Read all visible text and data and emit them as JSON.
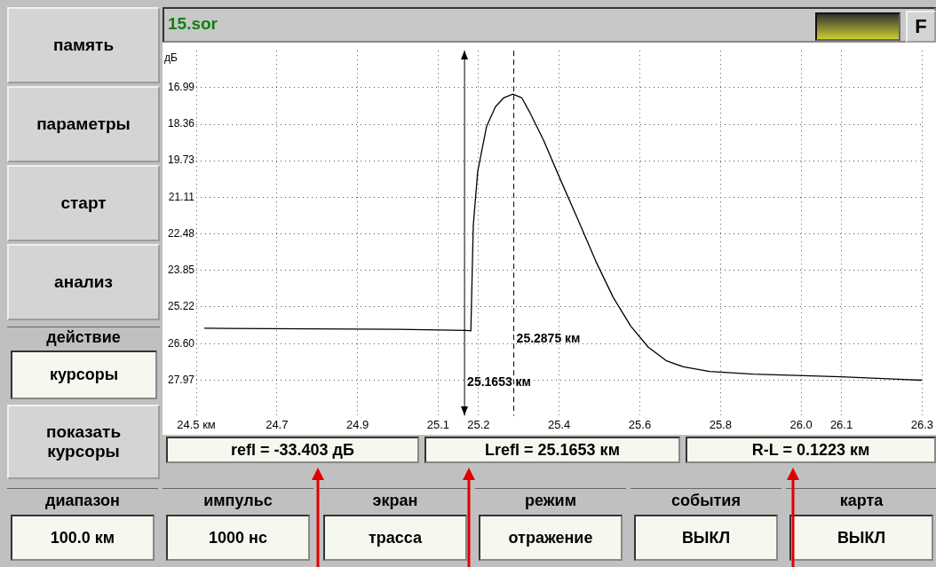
{
  "chart_data": {
    "type": "line",
    "title": "15.sor",
    "ylabel": "дБ",
    "series": [
      {
        "color": "#000000",
        "x": [
          24.52,
          25.0,
          25.17,
          25.181,
          25.187,
          25.198,
          25.22,
          25.242,
          25.263,
          25.285,
          25.307,
          25.328,
          25.361,
          25.404,
          25.448,
          25.491,
          25.534,
          25.578,
          25.621,
          25.665,
          25.708,
          25.773,
          25.881,
          26.098,
          26.3
        ],
        "values": [
          26.02,
          26.06,
          26.1,
          26.12,
          22.16,
          20.13,
          18.44,
          17.7,
          17.36,
          17.23,
          17.36,
          17.94,
          18.95,
          20.47,
          21.99,
          23.51,
          24.86,
          25.95,
          26.73,
          27.23,
          27.47,
          27.64,
          27.74,
          27.84,
          27.97
        ]
      }
    ],
    "xlim": [
      24.5,
      26.3
    ],
    "xticks": [
      {
        "value": 24.5,
        "label": "24.5 км"
      },
      24.7,
      24.9,
      25.1,
      25.2,
      25.4,
      25.6,
      25.8,
      {
        "value": 26.0,
        "label": "26.0"
      },
      26.1,
      26.3
    ],
    "ylim": [
      29.3,
      15.6
    ],
    "yticks": [
      16.99,
      18.36,
      19.73,
      21.11,
      22.48,
      23.85,
      25.22,
      {
        "value": 26.6,
        "label": "26.60"
      },
      27.97
    ],
    "grid": true,
    "marker": "none",
    "line_style": "solid",
    "ref_lines": [
      {
        "axis": "x",
        "value": 25.1653,
        "label": "25.1653 км",
        "line_style": "solid",
        "color": "#000000"
      },
      {
        "axis": "x",
        "value": 25.2875,
        "label": "25.2875 км",
        "line_style": "dashed",
        "color": "#000000"
      }
    ],
    "annotations": [
      "refl = -33.403 дБ",
      "Lrefl = 25.1653 км",
      "R-L = 0.1223 км",
      "память",
      "параметры",
      "старт",
      "анализ",
      "действие",
      "курсоры",
      "показать курсоры",
      "диапазон",
      "100.0 км",
      "импульс",
      "1000 нс",
      "экран",
      "трасса",
      "режим",
      "отражение",
      "события",
      "ВЫКЛ",
      "карта",
      "ВЫКЛ",
      "F"
    ]
  }
}
